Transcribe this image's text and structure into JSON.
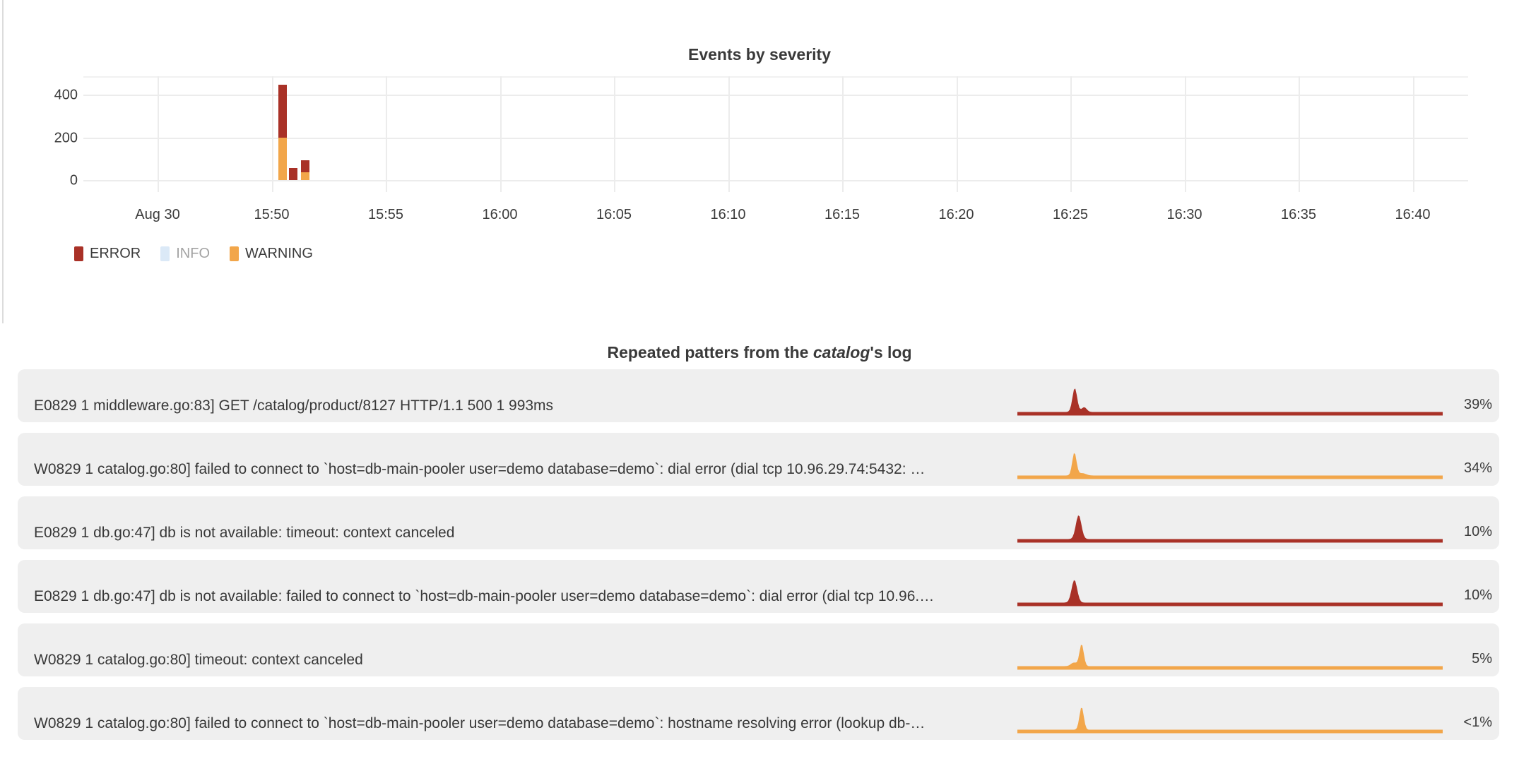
{
  "colors": {
    "error": "#a93127",
    "warning": "#f2a64a",
    "info": "#dbe9f7",
    "row_bg": "#efefef",
    "grid": "#ececec",
    "text": "#3b3b3b",
    "muted": "#a3a3a3"
  },
  "severity_chart": {
    "title": "Events by severity",
    "y_ticks": [
      0,
      200,
      400
    ],
    "x_ticks": [
      "Aug 30",
      "15:50",
      "15:55",
      "16:00",
      "16:05",
      "16:10",
      "16:15",
      "16:20",
      "16:25",
      "16:30",
      "16:35",
      "16:40"
    ],
    "legend": [
      {
        "label": "ERROR",
        "color_key": "error",
        "disabled": false
      },
      {
        "label": "INFO",
        "color_key": "info",
        "disabled": true
      },
      {
        "label": "WARNING",
        "color_key": "warning",
        "disabled": false
      }
    ],
    "bars": [
      {
        "time": "15:50:30",
        "warning": 197,
        "error": 249
      },
      {
        "time": "15:51:00",
        "warning": 0,
        "error": 56
      },
      {
        "time": "15:51:30",
        "warning": 36,
        "error": 56
      }
    ]
  },
  "patterns": {
    "title_prefix": "Repeated patters from the ",
    "title_italic": "catalog",
    "title_suffix": "'s log",
    "rows": [
      {
        "text": "E0829 1 middleware.go:83] GET /catalog/product/8127 HTTP/1.1 500 1 993ms",
        "percent": "39%",
        "severity": "error",
        "peaks": [
          [
            0.135,
            1.0,
            0.0055
          ],
          [
            0.157,
            0.2,
            0.006
          ]
        ]
      },
      {
        "text": "W0829 1 catalog.go:80] failed to connect to `host=db-main-pooler user=demo database=demo`: dial error (dial tcp 10.96.29.74:5432: …",
        "percent": "34%",
        "severity": "warning",
        "peaks": [
          [
            0.134,
            0.95,
            0.005
          ],
          [
            0.152,
            0.1,
            0.009
          ]
        ]
      },
      {
        "text": "E0829 1 db.go:47] db is not available: timeout: context canceled",
        "percent": "10%",
        "severity": "error",
        "peaks": [
          [
            0.144,
            1.0,
            0.0065
          ]
        ]
      },
      {
        "text": "E0829 1 db.go:47] db is not available: failed to connect to `host=db-main-pooler user=demo database=demo`: dial error (dial tcp 10.96.…",
        "percent": "10%",
        "severity": "error",
        "peaks": [
          [
            0.134,
            0.95,
            0.0065
          ]
        ]
      },
      {
        "text": "W0829 1 catalog.go:80] timeout: context canceled",
        "percent": "5%",
        "severity": "warning",
        "peaks": [
          [
            0.133,
            0.15,
            0.007
          ],
          [
            0.151,
            0.92,
            0.005
          ]
        ]
      },
      {
        "text": "W0829 1 catalog.go:80] failed to connect to `host=db-main-pooler user=demo database=demo`: hostname resolving error (lookup db-…",
        "percent": "<1%",
        "severity": "warning",
        "peaks": [
          [
            0.151,
            0.95,
            0.005
          ]
        ]
      }
    ]
  },
  "chart_data": [
    {
      "type": "bar",
      "title": "Events by severity",
      "stacked": true,
      "categories": [
        "15:50:30",
        "15:51:00",
        "15:51:30"
      ],
      "series": [
        {
          "name": "WARNING",
          "color": "#f2a64a",
          "values": [
            197,
            0,
            36
          ]
        },
        {
          "name": "ERROR",
          "color": "#a93127",
          "values": [
            249,
            56,
            56
          ]
        }
      ],
      "x_axis_ticks": [
        "Aug 30",
        "15:50",
        "15:55",
        "16:00",
        "16:05",
        "16:10",
        "16:15",
        "16:20",
        "16:25",
        "16:30",
        "16:35",
        "16:40"
      ],
      "y_axis_ticks": [
        0,
        200,
        400
      ],
      "ylim": [
        0,
        485
      ],
      "grid": true,
      "legend": [
        "ERROR",
        "INFO",
        "WARNING"
      ],
      "legend_position": "bottom-left",
      "note": "INFO series toggled off (grayed legend entry); spike of errors/warnings shortly after 15:50"
    },
    {
      "type": "area",
      "title": "Repeated patters from the catalog's log",
      "rows": [
        {
          "label": "E0829 1 middleware.go:83] GET /catalog/product/8127 HTTP/1.1 500 1 993ms",
          "percent": "39%",
          "series": "ERROR",
          "shape": "flat baseline with sharp spike ~13.5% along timeline and small echo at ~15.7%"
        },
        {
          "label": "W0829 1 catalog.go:80] failed to connect to `host=db-main-pooler user=demo database=demo`: dial error (dial tcp 10.96.29.74:5432: …",
          "percent": "34%",
          "series": "WARNING",
          "shape": "flat baseline with sharp spike ~13.4%"
        },
        {
          "label": "E0829 1 db.go:47] db is not available: timeout: context canceled",
          "percent": "10%",
          "series": "ERROR",
          "shape": "flat baseline with spike ~14.4%"
        },
        {
          "label": "E0829 1 db.go:47] db is not available: failed to connect to `host=db-main-pooler user=demo database=demo`: dial error (dial tcp 10.96.…",
          "percent": "10%",
          "series": "ERROR",
          "shape": "flat baseline with spike ~13.4%"
        },
        {
          "label": "W0829 1 catalog.go:80] timeout: context canceled",
          "percent": "5%",
          "series": "WARNING",
          "shape": "flat baseline with spike ~15.1% and small bump before it"
        },
        {
          "label": "W0829 1 catalog.go:80] failed to connect to `host=db-main-pooler user=demo database=demo`: hostname resolving error (lookup db-…",
          "percent": "<1%",
          "series": "WARNING",
          "shape": "flat baseline with spike ~15.1%"
        }
      ]
    }
  ]
}
